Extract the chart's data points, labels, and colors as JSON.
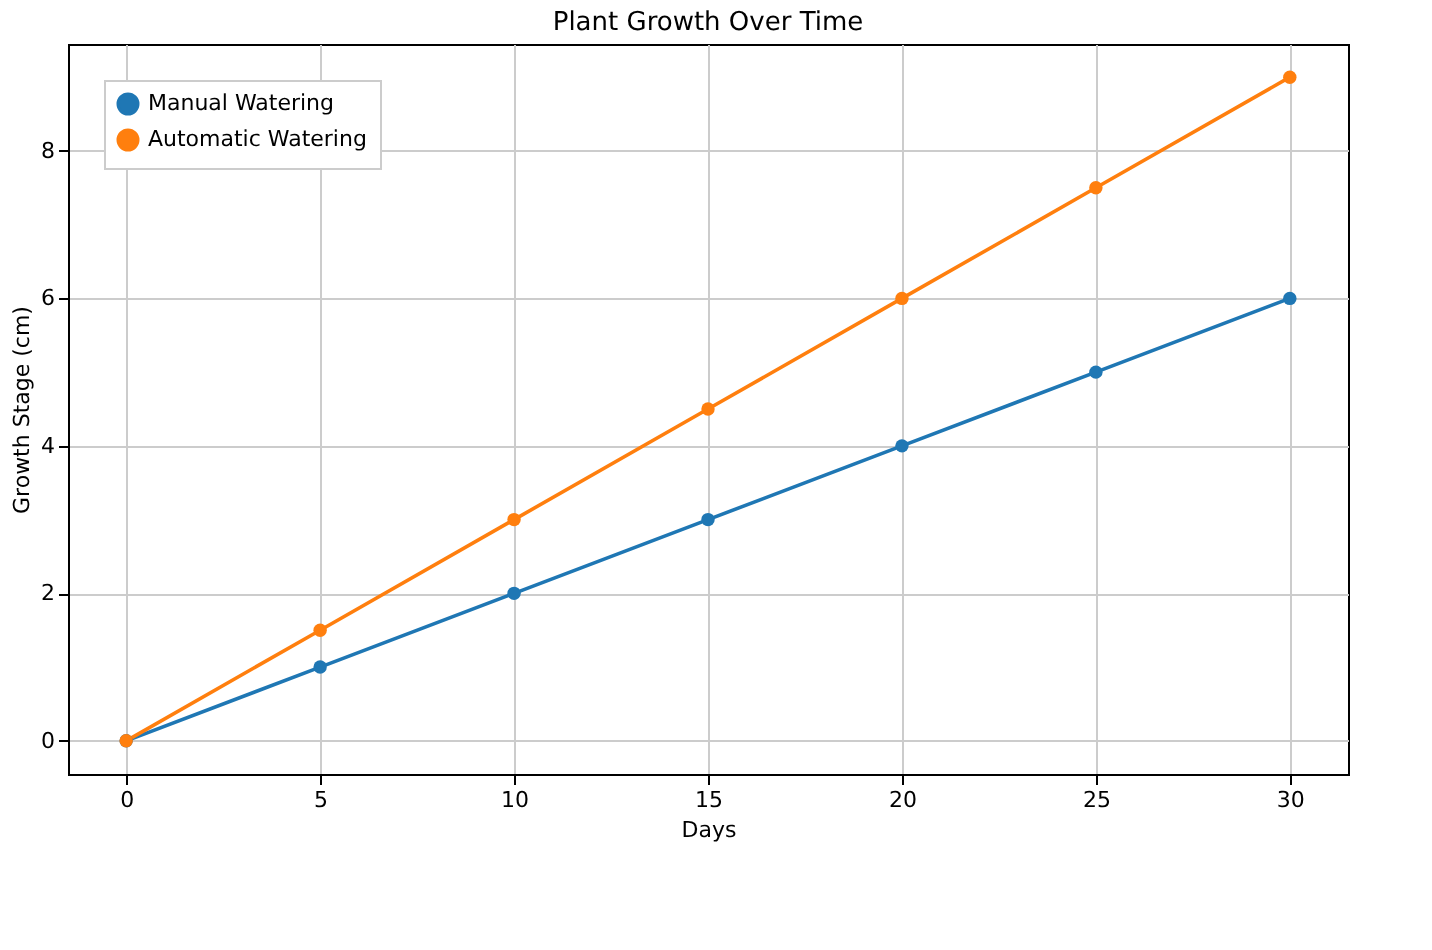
{
  "chart_data": {
    "type": "line",
    "title": "Plant Growth Over Time",
    "xlabel": "Days",
    "ylabel": "Growth Stage (cm)",
    "x": [
      0,
      5,
      10,
      15,
      20,
      25,
      30
    ],
    "series": [
      {
        "name": "Manual Watering",
        "color": "#1f77b4",
        "values": [
          0,
          1,
          2,
          3,
          4,
          5,
          6
        ]
      },
      {
        "name": "Automatic Watering",
        "color": "#ff7f0e",
        "values": [
          0,
          1.5,
          3,
          4.5,
          6,
          7.5,
          9
        ]
      }
    ],
    "xlim": [
      -1.5,
      31.5
    ],
    "ylim": [
      -0.45,
      9.45
    ],
    "xticks": [
      0,
      5,
      10,
      15,
      20,
      25,
      30
    ],
    "yticks": [
      0,
      2,
      4,
      6,
      8
    ],
    "grid": true,
    "legend": "top left",
    "marker": "circle",
    "line_style": "solid"
  }
}
